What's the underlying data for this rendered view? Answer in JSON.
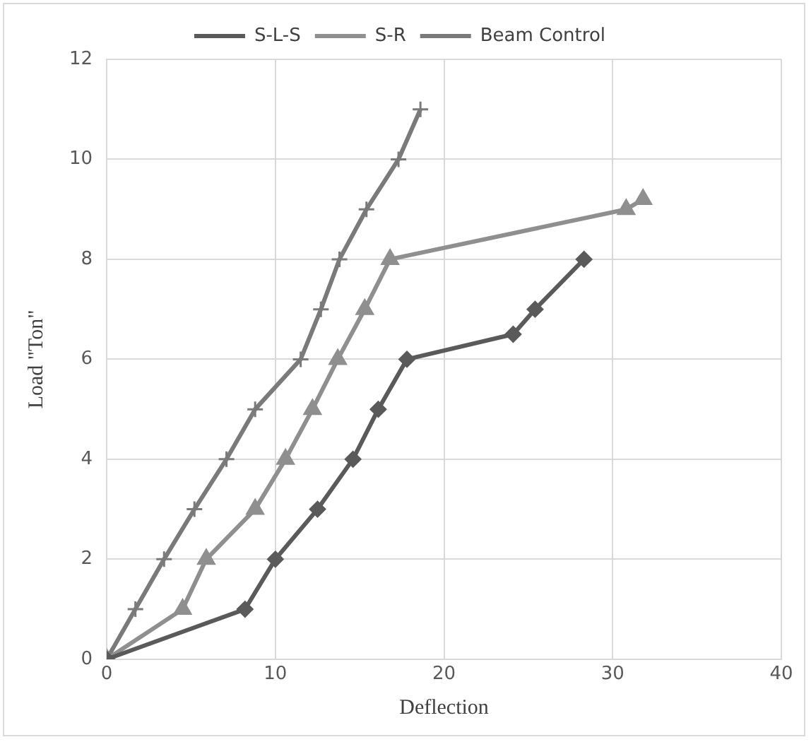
{
  "chart_data": {
    "type": "line",
    "xlabel": "Deflection",
    "ylabel": "Load \"Ton\"",
    "xlim": [
      0,
      40
    ],
    "xticks": [
      0,
      10,
      20,
      30,
      40
    ],
    "ylim": [
      0,
      12
    ],
    "yticks": [
      0,
      2,
      4,
      6,
      8,
      10,
      12
    ],
    "grid": true,
    "legend": "top",
    "series": [
      {
        "name": "S-L-S",
        "color": "#5a5a5a",
        "marker": "diamond",
        "x": [
          0,
          8.2,
          10,
          12.5,
          14.6,
          16.1,
          17.8,
          24.1,
          25.4,
          28.3
        ],
        "values": [
          0,
          1,
          2,
          3,
          4,
          5,
          6,
          6.5,
          7,
          8
        ]
      },
      {
        "name": "S-R",
        "color": "#8f8f8f",
        "marker": "triangle",
        "x": [
          0,
          4.5,
          5.9,
          8.8,
          10.6,
          12.2,
          13.7,
          15.3,
          16.8,
          30.8,
          31.8
        ],
        "values": [
          0,
          1,
          2,
          3,
          4,
          5,
          6,
          7,
          8,
          9,
          9.2
        ]
      },
      {
        "name": "Beam Control",
        "color": "#7a7a7a",
        "marker": "cross",
        "x": [
          0,
          1.7,
          3.4,
          5.2,
          7.1,
          8.8,
          11.5,
          12.7,
          13.8,
          15.4,
          17.3,
          18.6
        ],
        "values": [
          0,
          1,
          2,
          3,
          4,
          5,
          6,
          7,
          8,
          9,
          10,
          11
        ]
      }
    ]
  }
}
